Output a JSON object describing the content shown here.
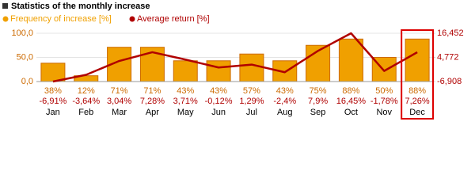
{
  "chart_data": {
    "type": "bar",
    "title": "Statistics of the monthly increase",
    "categories": [
      "Jan",
      "Feb",
      "Mar",
      "Apr",
      "May",
      "Jun",
      "Jul",
      "Aug",
      "Sep",
      "Oct",
      "Nov",
      "Dec"
    ],
    "series": [
      {
        "name": "Frequency of increase [%]",
        "color": "#f0a000",
        "border": "#cc6a00",
        "values": [
          38,
          12,
          71,
          71,
          43,
          43,
          57,
          43,
          75,
          88,
          50,
          88
        ],
        "value_labels": [
          "38%",
          "12%",
          "71%",
          "71%",
          "43%",
          "43%",
          "57%",
          "43%",
          "75%",
          "88%",
          "50%",
          "88%"
        ]
      },
      {
        "name": "Average return [%]",
        "type": "line",
        "axis": "y2",
        "color": "#b00000",
        "values": [
          -6.91,
          -3.64,
          3.04,
          7.28,
          3.71,
          -0.12,
          1.29,
          -2.4,
          7.9,
          16.45,
          -1.78,
          7.26
        ],
        "value_labels": [
          "-6,91%",
          "-3,64%",
          "3,04%",
          "7,28%",
          "3,71%",
          "-0,12%",
          "1,29%",
          "-2,4%",
          "7,9%",
          "16,45%",
          "-1,78%",
          "7,26%"
        ]
      }
    ],
    "ylim": [
      0,
      100
    ],
    "yticks": [
      {
        "value": 0,
        "label": "0,0"
      },
      {
        "value": 50,
        "label": "50,0"
      },
      {
        "value": 100,
        "label": "100,0"
      }
    ],
    "y2lim": [
      -6.908,
      16.452
    ],
    "y2ticks": [
      {
        "value": -6.908,
        "label": "-6,908"
      },
      {
        "value": 4.772,
        "label": "4,772"
      },
      {
        "value": 16.452,
        "label": "16,452"
      }
    ],
    "grid": true,
    "highlight_index": 11,
    "highlight_color": "#dd0000"
  }
}
